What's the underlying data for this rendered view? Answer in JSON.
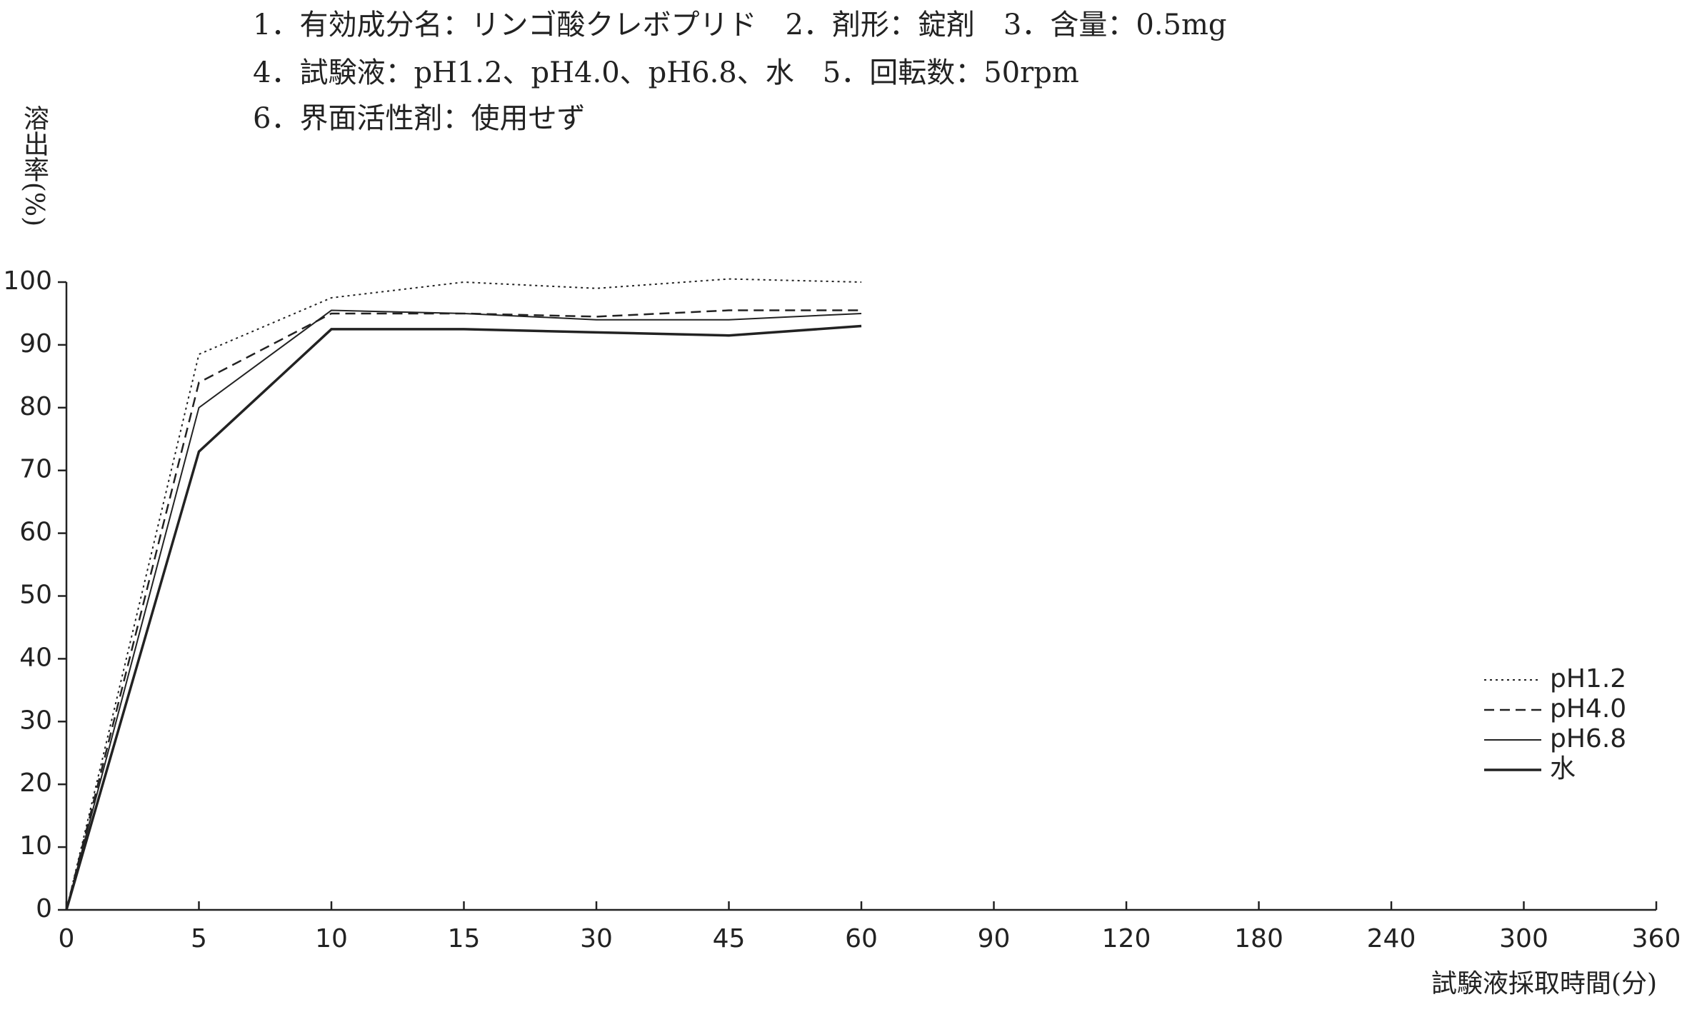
{
  "chart_data": {
    "type": "line",
    "annotations": [
      "1．有効成分名：リンゴ酸クレボプリド　2．剤形：錠剤　3．含量：0.5mg",
      "4．試験液：pH1.2、pH4.0、pH6.8、水　5．回転数：50rpm",
      "6．界面活性剤：使用せず"
    ],
    "y_label": "溶出率(%)",
    "x_label": "試験液採取時間(分)",
    "categories": [
      "0",
      "5",
      "10",
      "15",
      "30",
      "45",
      "60",
      "90",
      "120",
      "180",
      "240",
      "300",
      "360"
    ],
    "series": [
      {
        "name": "pH1.2",
        "color": "#222222",
        "style": "dotted",
        "linewidth": 2,
        "values": [
          0,
          88.5,
          97.5,
          100,
          99,
          100.5,
          100,
          null,
          null,
          null,
          null,
          null,
          null
        ]
      },
      {
        "name": "pH4.0",
        "color": "#222222",
        "style": "dashed",
        "linewidth": 2.5,
        "values": [
          0,
          84,
          95,
          95,
          94.5,
          95.5,
          95.5,
          null,
          null,
          null,
          null,
          null,
          null
        ]
      },
      {
        "name": "pH6.8",
        "color": "#222222",
        "style": "solid",
        "linewidth": 2,
        "values": [
          0,
          80,
          95.5,
          95,
          94,
          94,
          95,
          null,
          null,
          null,
          null,
          null,
          null
        ]
      },
      {
        "name": "水",
        "color": "#222222",
        "style": "solid",
        "linewidth": 3.5,
        "values": [
          0,
          73,
          92.5,
          92.5,
          92,
          91.5,
          93,
          null,
          null,
          null,
          null,
          null,
          null
        ]
      }
    ],
    "ylim": [
      0,
      100
    ],
    "yticks": [
      0,
      10,
      20,
      30,
      40,
      50,
      60,
      70,
      80,
      90,
      100
    ],
    "legend": "lower-right"
  }
}
